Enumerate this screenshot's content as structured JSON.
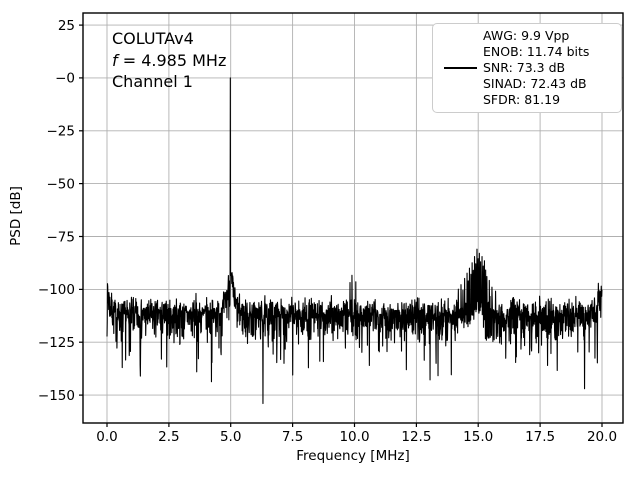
{
  "figure": {
    "background": "#ffffff",
    "annotation": {
      "device": "COLUTAv4",
      "freq_prefix": "f",
      "freq_rest": " = 4.985 MHz",
      "channel": "Channel 1"
    },
    "legend": {
      "entries": [
        "AWG: 9.9 Vpp",
        "ENOB: 11.74 bits",
        "SNR: 73.3 dB",
        "SINAD: 72.43 dB",
        "SFDR: 81.19"
      ],
      "key_color": "#000000"
    }
  },
  "chart_data": {
    "type": "line",
    "title": "",
    "xlabel": "Frequency [MHz]",
    "ylabel": "PSD [dB]",
    "xlim": [
      -0.97,
      20.85
    ],
    "ylim": [
      -163.2,
      30.7
    ],
    "grid": true,
    "grid_color": "#b0b0b0",
    "line_color": "#000000",
    "axes_color": "#000000",
    "xticks": [
      {
        "v": 0,
        "label": "0.0"
      },
      {
        "v": 2.5,
        "label": "2.5"
      },
      {
        "v": 5,
        "label": "5.0"
      },
      {
        "v": 7.5,
        "label": "7.5"
      },
      {
        "v": 10,
        "label": "10.0"
      },
      {
        "v": 12.5,
        "label": "12.5"
      },
      {
        "v": 15,
        "label": "15.0"
      },
      {
        "v": 17.5,
        "label": "17.5"
      },
      {
        "v": 20,
        "label": "20.0"
      }
    ],
    "yticks": [
      {
        "v": 25,
        "label": "25"
      },
      {
        "v": 0,
        "label": "−0"
      },
      {
        "v": -25,
        "label": "−25"
      },
      {
        "v": -50,
        "label": "−50"
      },
      {
        "v": -75,
        "label": "−75"
      },
      {
        "v": -100,
        "label": "−100"
      },
      {
        "v": -125,
        "label": "−125"
      },
      {
        "v": -150,
        "label": "−150"
      }
    ],
    "signal": {
      "device": "COLUTAv4",
      "channel": "Channel 1",
      "carrier_mhz": 4.985,
      "carrier_db": 0
    },
    "metrics": {
      "awg_vpp": 9.9,
      "enob_bits": 11.74,
      "snr_db": 73.3,
      "sinad_db": 72.43,
      "sfdr": 81.19
    },
    "spurs": [
      {
        "f": 4.985,
        "db": 0
      },
      {
        "f": 0.03,
        "db": -101
      },
      {
        "f": 0.08,
        "db": -104
      },
      {
        "f": 9.82,
        "db": -97
      },
      {
        "f": 9.9,
        "db": -93.5
      },
      {
        "f": 10.05,
        "db": -96.5
      },
      {
        "f": 14.2,
        "db": -100
      },
      {
        "f": 14.3,
        "db": -98
      },
      {
        "f": 14.38,
        "db": -101
      },
      {
        "f": 14.45,
        "db": -95
      },
      {
        "f": 14.55,
        "db": -92.5
      },
      {
        "f": 14.6,
        "db": -96
      },
      {
        "f": 14.65,
        "db": -90
      },
      {
        "f": 14.7,
        "db": -93
      },
      {
        "f": 14.75,
        "db": -87.5
      },
      {
        "f": 14.8,
        "db": -91
      },
      {
        "f": 14.85,
        "db": -84.5
      },
      {
        "f": 14.9,
        "db": -88
      },
      {
        "f": 14.95,
        "db": -81
      },
      {
        "f": 15.0,
        "db": -85.5
      },
      {
        "f": 15.05,
        "db": -83
      },
      {
        "f": 15.1,
        "db": -87
      },
      {
        "f": 15.15,
        "db": -84.5
      },
      {
        "f": 15.2,
        "db": -89
      },
      {
        "f": 15.25,
        "db": -86.5
      },
      {
        "f": 15.3,
        "db": -91
      },
      {
        "f": 15.35,
        "db": -94
      },
      {
        "f": 15.45,
        "db": -96
      },
      {
        "f": 15.55,
        "db": -99
      },
      {
        "f": 15.7,
        "db": -101
      },
      {
        "f": 19.85,
        "db": -98
      },
      {
        "f": 19.97,
        "db": -100
      }
    ],
    "dips": [
      {
        "f": 0.62,
        "db": -137
      },
      {
        "f": 1.35,
        "db": -141
      },
      {
        "f": 2.2,
        "db": -133
      },
      {
        "f": 3.62,
        "db": -139
      },
      {
        "f": 6.3,
        "db": -154
      },
      {
        "f": 7.15,
        "db": -135
      },
      {
        "f": 8.6,
        "db": -134
      },
      {
        "f": 10.6,
        "db": -136
      },
      {
        "f": 12.1,
        "db": -138
      },
      {
        "f": 13.3,
        "db": -135
      },
      {
        "f": 17.8,
        "db": -136
      },
      {
        "f": 19.3,
        "db": -147
      }
    ],
    "noise": {
      "seed": 7,
      "n_points": 2048,
      "floor_db": -111,
      "skirt_narrow": {
        "amp": 12,
        "sigma": 0.15
      },
      "skirt_wide": {
        "amp": 5,
        "sigma": 0.4
      },
      "bump15": {
        "f": 14.95,
        "amp": 5,
        "sigma": 0.45
      },
      "edge": {
        "amp": 8,
        "sigma": 0.2
      }
    }
  }
}
